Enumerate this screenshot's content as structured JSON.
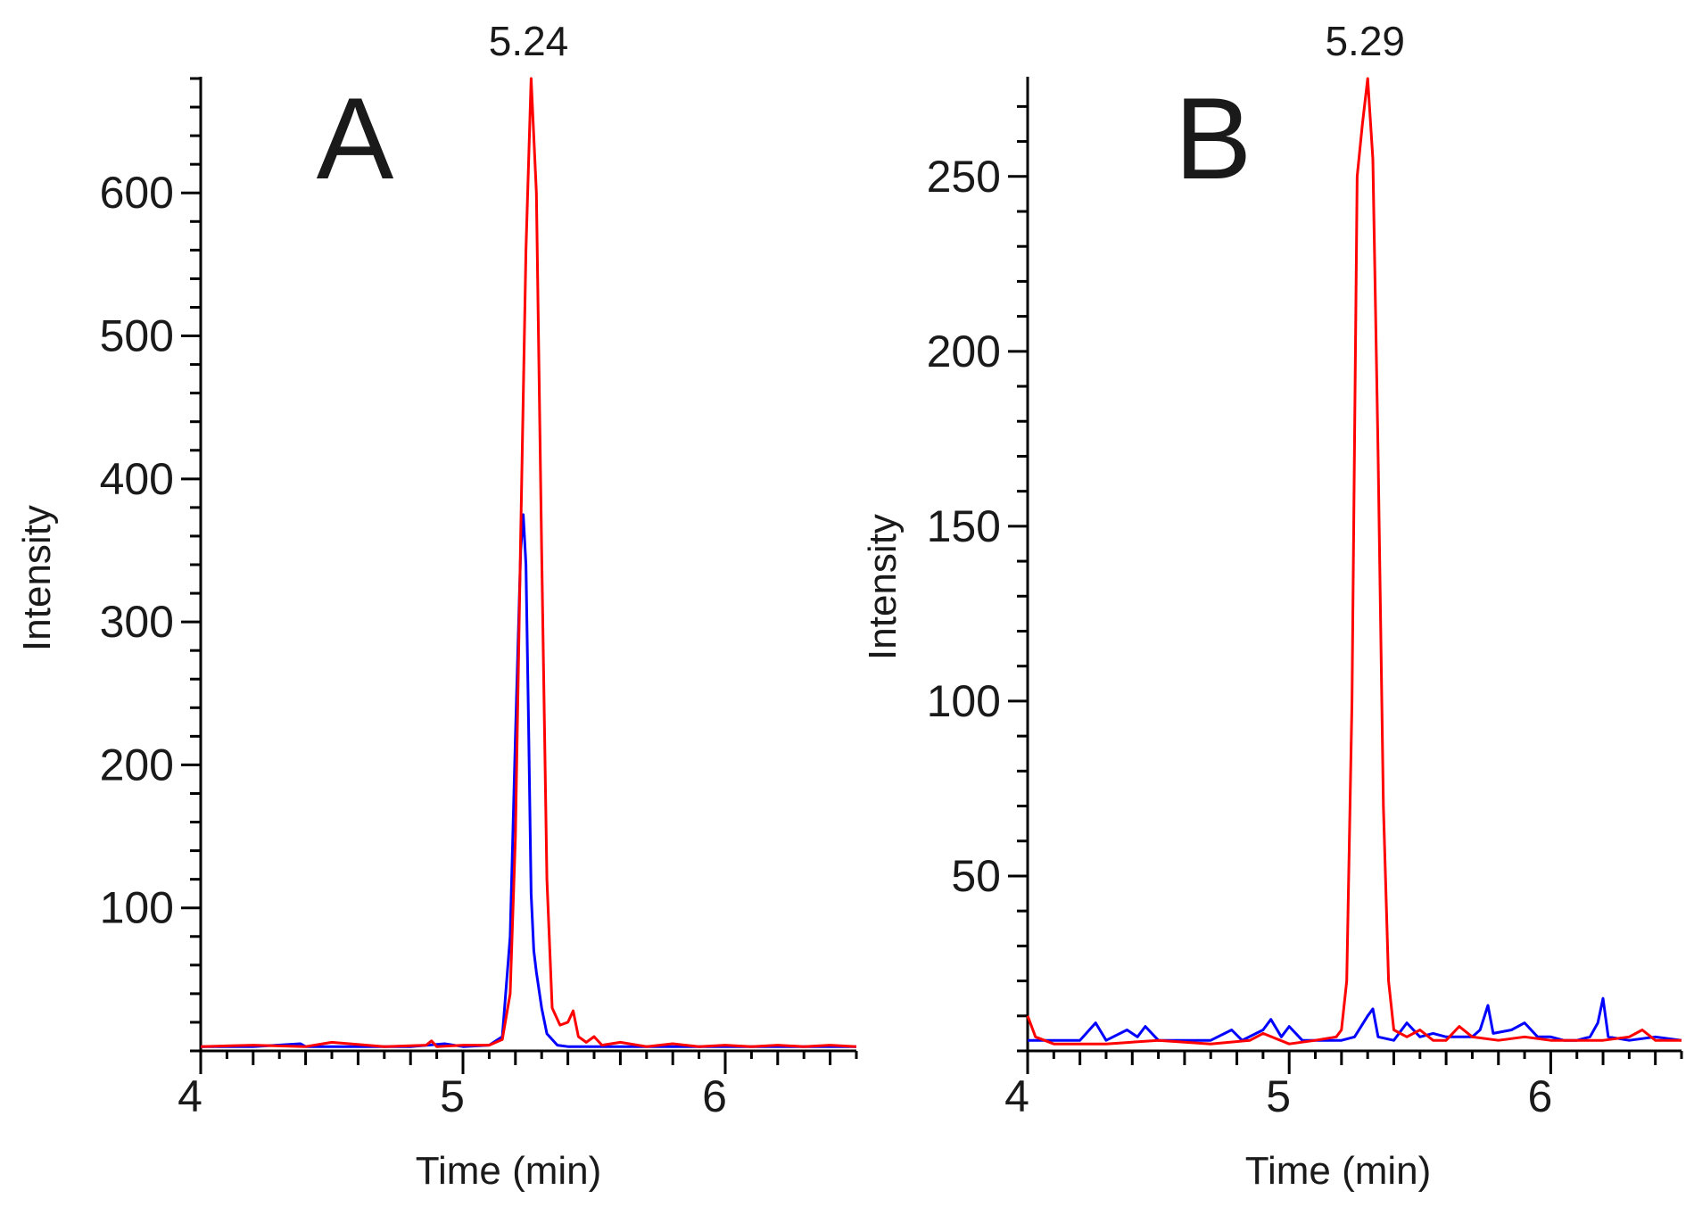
{
  "chart_data": [
    {
      "type": "line",
      "panel_label": "A",
      "xlabel": "Time (min)",
      "ylabel": "Intensity",
      "xlim": [
        4,
        6.5
      ],
      "ylim": [
        0,
        680
      ],
      "x_ticks": [
        "4",
        "5",
        "6"
      ],
      "y_ticks": [
        "100",
        "200",
        "300",
        "400",
        "500",
        "600"
      ],
      "peak_annotation": {
        "text": "5.24",
        "x": 5.25
      },
      "series": [
        {
          "name": "red trace",
          "color": "#ff0000",
          "points": [
            [
              4.0,
              3
            ],
            [
              4.2,
              4
            ],
            [
              4.4,
              3
            ],
            [
              4.5,
              6
            ],
            [
              4.7,
              3
            ],
            [
              4.86,
              4
            ],
            [
              4.88,
              7
            ],
            [
              4.9,
              3
            ],
            [
              5.0,
              4
            ],
            [
              5.1,
              4
            ],
            [
              5.15,
              8
            ],
            [
              5.18,
              40
            ],
            [
              5.2,
              150
            ],
            [
              5.22,
              360
            ],
            [
              5.24,
              560
            ],
            [
              5.26,
              680
            ],
            [
              5.28,
              600
            ],
            [
              5.3,
              350
            ],
            [
              5.32,
              120
            ],
            [
              5.34,
              30
            ],
            [
              5.37,
              18
            ],
            [
              5.4,
              20
            ],
            [
              5.42,
              28
            ],
            [
              5.44,
              10
            ],
            [
              5.47,
              6
            ],
            [
              5.5,
              10
            ],
            [
              5.53,
              4
            ],
            [
              5.6,
              6
            ],
            [
              5.7,
              3
            ],
            [
              5.8,
              5
            ],
            [
              5.9,
              3
            ],
            [
              6.0,
              4
            ],
            [
              6.1,
              3
            ],
            [
              6.2,
              4
            ],
            [
              6.3,
              3
            ],
            [
              6.4,
              4
            ],
            [
              6.5,
              3
            ]
          ]
        },
        {
          "name": "blue trace",
          "color": "#0000ff",
          "points": [
            [
              4.0,
              3
            ],
            [
              4.2,
              3
            ],
            [
              4.38,
              5
            ],
            [
              4.4,
              3
            ],
            [
              4.6,
              3
            ],
            [
              4.8,
              3
            ],
            [
              4.93,
              5
            ],
            [
              5.0,
              3
            ],
            [
              5.1,
              4
            ],
            [
              5.15,
              10
            ],
            [
              5.18,
              80
            ],
            [
              5.2,
              220
            ],
            [
              5.22,
              350
            ],
            [
              5.23,
              375
            ],
            [
              5.24,
              340
            ],
            [
              5.25,
              230
            ],
            [
              5.26,
              110
            ],
            [
              5.27,
              70
            ],
            [
              5.28,
              55
            ],
            [
              5.3,
              30
            ],
            [
              5.32,
              12
            ],
            [
              5.36,
              4
            ],
            [
              5.4,
              3
            ],
            [
              5.6,
              3
            ],
            [
              5.8,
              3
            ],
            [
              6.0,
              3
            ],
            [
              6.2,
              3
            ],
            [
              6.5,
              3
            ]
          ]
        }
      ]
    },
    {
      "type": "line",
      "panel_label": "B",
      "xlabel": "Time (min)",
      "ylabel": "Intensity",
      "xlim": [
        4,
        6.5
      ],
      "ylim": [
        0,
        278
      ],
      "x_ticks": [
        "4",
        "5",
        "6"
      ],
      "y_ticks": [
        "50",
        "100",
        "150",
        "200",
        "250"
      ],
      "peak_annotation": {
        "text": "5.29",
        "x": 5.29
      },
      "series": [
        {
          "name": "red trace",
          "color": "#ff0000",
          "points": [
            [
              4.0,
              10
            ],
            [
              4.03,
              4
            ],
            [
              4.1,
              2
            ],
            [
              4.3,
              2
            ],
            [
              4.5,
              3
            ],
            [
              4.7,
              2
            ],
            [
              4.85,
              3
            ],
            [
              4.9,
              5
            ],
            [
              5.0,
              2
            ],
            [
              5.1,
              3
            ],
            [
              5.18,
              4
            ],
            [
              5.2,
              6
            ],
            [
              5.22,
              20
            ],
            [
              5.24,
              100
            ],
            [
              5.26,
              250
            ],
            [
              5.28,
              265
            ],
            [
              5.3,
              278
            ],
            [
              5.32,
              255
            ],
            [
              5.34,
              170
            ],
            [
              5.36,
              70
            ],
            [
              5.38,
              20
            ],
            [
              5.4,
              6
            ],
            [
              5.45,
              4
            ],
            [
              5.5,
              6
            ],
            [
              5.55,
              3
            ],
            [
              5.6,
              3
            ],
            [
              5.65,
              7
            ],
            [
              5.7,
              4
            ],
            [
              5.8,
              3
            ],
            [
              5.9,
              4
            ],
            [
              6.0,
              3
            ],
            [
              6.1,
              3
            ],
            [
              6.2,
              3
            ],
            [
              6.3,
              4
            ],
            [
              6.35,
              6
            ],
            [
              6.4,
              3
            ],
            [
              6.5,
              3
            ]
          ]
        },
        {
          "name": "blue trace",
          "color": "#0000ff",
          "points": [
            [
              4.0,
              3
            ],
            [
              4.2,
              3
            ],
            [
              4.26,
              8
            ],
            [
              4.3,
              3
            ],
            [
              4.38,
              6
            ],
            [
              4.42,
              4
            ],
            [
              4.45,
              7
            ],
            [
              4.5,
              3
            ],
            [
              4.6,
              3
            ],
            [
              4.7,
              3
            ],
            [
              4.78,
              6
            ],
            [
              4.82,
              3
            ],
            [
              4.9,
              6
            ],
            [
              4.93,
              9
            ],
            [
              4.97,
              4
            ],
            [
              5.0,
              7
            ],
            [
              5.05,
              3
            ],
            [
              5.1,
              3
            ],
            [
              5.2,
              3
            ],
            [
              5.25,
              4
            ],
            [
              5.3,
              10
            ],
            [
              5.32,
              12
            ],
            [
              5.34,
              4
            ],
            [
              5.4,
              3
            ],
            [
              5.45,
              8
            ],
            [
              5.5,
              4
            ],
            [
              5.55,
              5
            ],
            [
              5.6,
              4
            ],
            [
              5.7,
              4
            ],
            [
              5.73,
              6
            ],
            [
              5.76,
              13
            ],
            [
              5.78,
              5
            ],
            [
              5.85,
              6
            ],
            [
              5.9,
              8
            ],
            [
              5.95,
              4
            ],
            [
              6.0,
              4
            ],
            [
              6.05,
              3
            ],
            [
              6.1,
              3
            ],
            [
              6.15,
              4
            ],
            [
              6.18,
              8
            ],
            [
              6.2,
              15
            ],
            [
              6.22,
              4
            ],
            [
              6.3,
              3
            ],
            [
              6.4,
              4
            ],
            [
              6.5,
              3
            ]
          ]
        }
      ]
    }
  ]
}
